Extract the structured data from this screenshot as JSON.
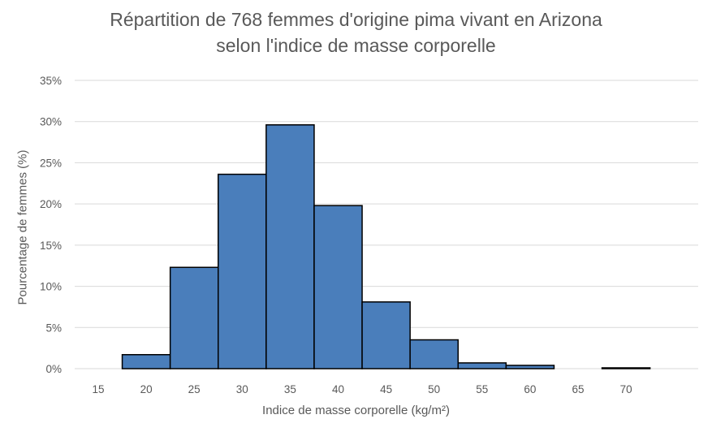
{
  "chart_data": {
    "type": "bar",
    "title_line1": "Répartition de 768 femmes d'origine pima vivant en Arizona",
    "title_line2": "selon l'indice de masse corporelle",
    "xlabel": "Indice de masse corporelle (kg/m²)",
    "ylabel": "Pourcentage de femmes (%)",
    "categories": [
      "15",
      "20",
      "25",
      "30",
      "35",
      "40",
      "45",
      "50",
      "55",
      "60",
      "65",
      "70"
    ],
    "values": [
      0,
      1.7,
      12.3,
      23.6,
      29.6,
      19.8,
      8.1,
      3.5,
      0.7,
      0.4,
      0,
      0.1
    ],
    "ylim": [
      0,
      35
    ],
    "yticks": [
      0,
      5,
      10,
      15,
      20,
      25,
      30,
      35
    ],
    "ytick_labels": [
      "0%",
      "5%",
      "10%",
      "15%",
      "20%",
      "25%",
      "30%",
      "35%"
    ],
    "grid": true,
    "legend": "none",
    "bar_color": "#4a7ebb",
    "bar_edge_color": "#000000",
    "grid_color": "#d9d9d9"
  }
}
